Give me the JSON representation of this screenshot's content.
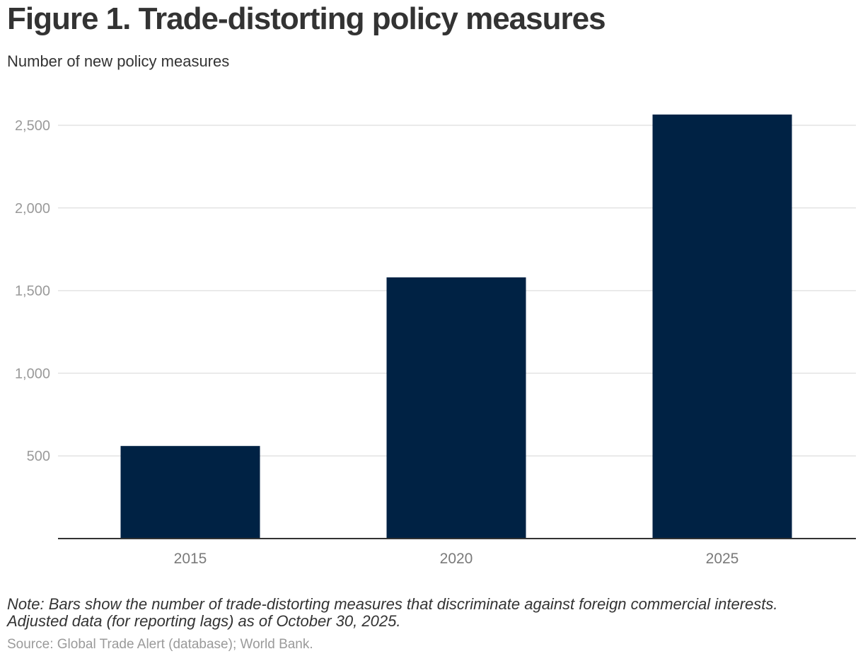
{
  "header": {
    "title": "Figure 1. Trade-distorting policy measures",
    "subtitle": "Number of new policy measures"
  },
  "footer": {
    "note_line1": "Note: Bars show the number of trade-distorting measures that discriminate against foreign commercial interests.",
    "note_line2": "Adjusted data (for reporting lags) as of October 30, 2025.",
    "source": "Source: Global Trade Alert (database); World Bank."
  },
  "colors": {
    "bar": "#002244",
    "grid": "#e3e3e3",
    "axis": "#333333"
  },
  "chart_data": {
    "type": "bar",
    "title": "Figure 1. Trade-distorting policy measures",
    "ylabel": "Number of new policy measures",
    "xlabel": "",
    "categories": [
      "2015",
      "2020",
      "2025"
    ],
    "values": [
      560,
      1580,
      2565
    ],
    "ylim": [
      0,
      2500
    ],
    "yticks": [
      500,
      1000,
      1500,
      2000,
      2500
    ],
    "ytick_labels": [
      "500",
      "1,000",
      "1,500",
      "2,000",
      "2,500"
    ],
    "grid": true,
    "legend": "none"
  }
}
